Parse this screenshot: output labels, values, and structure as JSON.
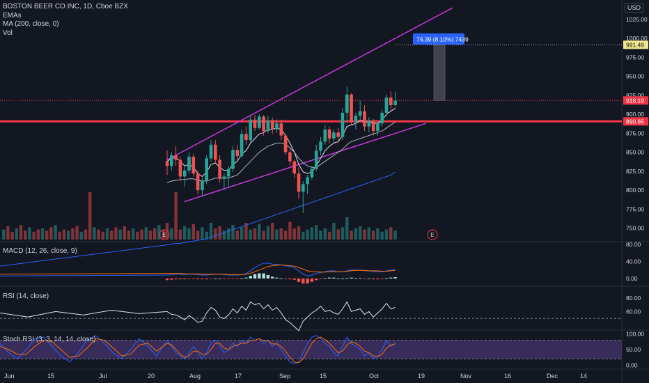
{
  "header": {
    "title": "BOSTON BEER CO INC, 1D, Cboe BZX",
    "currency": "USD",
    "indicators": [
      "EMAs",
      "MA (200, close, 0)",
      "Vol"
    ]
  },
  "panes": {
    "macd_label": "MACD (12, 26, close, 9)",
    "rsi_label": "RSI (14, close)",
    "stoch_label": "Stoch RSI (3, 3, 14, 14, close)"
  },
  "measure_label": "74.39 (8.10%) 7439",
  "earnings_marker": "E",
  "chart_data": {
    "type": "candlestick",
    "price_axis": {
      "ticks": [
        "1025.00",
        "1000.00",
        "975.00",
        "950.00",
        "925.00",
        "900.00",
        "875.00",
        "850.00",
        "825.00",
        "800.00",
        "775.00",
        "750.00"
      ],
      "ylim": [
        735,
        1045
      ]
    },
    "price_tags": [
      {
        "value": "991.49",
        "color": "#f0e68c",
        "text_color": "#131722"
      },
      {
        "value": "918.19",
        "color": "#f23645",
        "text_color": "#ffffff"
      },
      {
        "value": "890.65",
        "color": "#f23645",
        "text_color": "#ffffff"
      }
    ],
    "x_axis_ticks": [
      "Jun",
      "15",
      "Jul",
      "20",
      "Aug",
      "17",
      "Sep",
      "15",
      "Oct",
      "19",
      "Nov",
      "16",
      "Dec",
      "14"
    ],
    "horizontal_support": 890.65,
    "candles": [
      [
        838,
        852,
        820,
        832
      ],
      [
        832,
        850,
        826,
        846
      ],
      [
        846,
        858,
        832,
        840
      ],
      [
        840,
        844,
        812,
        818
      ],
      [
        818,
        832,
        804,
        826
      ],
      [
        826,
        850,
        822,
        844
      ],
      [
        844,
        848,
        818,
        822
      ],
      [
        822,
        826,
        795,
        800
      ],
      [
        800,
        816,
        792,
        812
      ],
      [
        812,
        846,
        808,
        842
      ],
      [
        842,
        866,
        838,
        860
      ],
      [
        860,
        866,
        836,
        840
      ],
      [
        840,
        846,
        810,
        815
      ],
      [
        815,
        822,
        800,
        818
      ],
      [
        818,
        832,
        805,
        828
      ],
      [
        828,
        858,
        824,
        853
      ],
      [
        853,
        860,
        840,
        845
      ],
      [
        845,
        880,
        842,
        874
      ],
      [
        874,
        884,
        860,
        866
      ],
      [
        866,
        898,
        862,
        893
      ],
      [
        893,
        899,
        878,
        882
      ],
      [
        882,
        900,
        880,
        897
      ],
      [
        897,
        899,
        872,
        878
      ],
      [
        878,
        898,
        875,
        892
      ],
      [
        892,
        896,
        874,
        880
      ],
      [
        880,
        893,
        876,
        888
      ],
      [
        888,
        893,
        866,
        872
      ],
      [
        872,
        874,
        846,
        850
      ],
      [
        850,
        855,
        832,
        838
      ],
      [
        838,
        840,
        816,
        822
      ],
      [
        822,
        830,
        788,
        798
      ],
      [
        798,
        812,
        770,
        808
      ],
      [
        808,
        820,
        795,
        817
      ],
      [
        817,
        832,
        814,
        828
      ],
      [
        828,
        860,
        825,
        852
      ],
      [
        852,
        870,
        846,
        864
      ],
      [
        864,
        886,
        860,
        880
      ],
      [
        880,
        884,
        862,
        868
      ],
      [
        868,
        880,
        862,
        876
      ],
      [
        876,
        882,
        862,
        870
      ],
      [
        870,
        908,
        866,
        902
      ],
      [
        902,
        936,
        890,
        926
      ],
      [
        926,
        928,
        886,
        890
      ],
      [
        890,
        902,
        880,
        898
      ],
      [
        898,
        918,
        892,
        904
      ],
      [
        904,
        912,
        878,
        884
      ],
      [
        884,
        896,
        876,
        892
      ],
      [
        892,
        894,
        872,
        878
      ],
      [
        878,
        892,
        872,
        888
      ],
      [
        888,
        906,
        884,
        902
      ],
      [
        902,
        926,
        898,
        922
      ],
      [
        922,
        930,
        906,
        912
      ],
      [
        912,
        930,
        910,
        918
      ]
    ],
    "moving_averages": [
      {
        "name": "EMA fast",
        "color": "#e0e3eb",
        "values": [
          838,
          842,
          843,
          838,
          832,
          834,
          830,
          822,
          818,
          824,
          834,
          836,
          830,
          826,
          826,
          834,
          838,
          848,
          852,
          862,
          868,
          874,
          876,
          880,
          880,
          882,
          880,
          872,
          862,
          850,
          834,
          824,
          822,
          824,
          832,
          842,
          852,
          858,
          862,
          864,
          872,
          884,
          886,
          888,
          892,
          890,
          890,
          888,
          888,
          892,
          900,
          904,
          908
        ]
      },
      {
        "name": "EMA slow",
        "color": "#b2b5be",
        "values": [
          810,
          812,
          813,
          814,
          814,
          815,
          815,
          813,
          812,
          812,
          814,
          816,
          816,
          816,
          816,
          818,
          820,
          826,
          832,
          838,
          844,
          850,
          854,
          858,
          860,
          862,
          862,
          860,
          856,
          850,
          842,
          836,
          832,
          830,
          830,
          834,
          838,
          842,
          846,
          850,
          854,
          860,
          864,
          866,
          868,
          870,
          872,
          874,
          876,
          878,
          882,
          886,
          890
        ]
      },
      {
        "name": "MA (200, close, 0)",
        "color": "#2962ff",
        "values": [
          728,
          729,
          730,
          730,
          731,
          732,
          733,
          734,
          735,
          736,
          738,
          740,
          742,
          744,
          746,
          748,
          750,
          752,
          754,
          756,
          758,
          760,
          762,
          764,
          766,
          768,
          770,
          772,
          774,
          776,
          778,
          780,
          782,
          784,
          786,
          788,
          790,
          792,
          794,
          796,
          798,
          800,
          802,
          804,
          806,
          808,
          810,
          812,
          814,
          816,
          818,
          820,
          824
        ]
      }
    ],
    "channel_lines": [
      {
        "color": "#c23bd8",
        "from": [
          0,
          840
        ],
        "to": [
          65,
          1040
        ]
      },
      {
        "color": "#c23bd8",
        "from": [
          4,
          785
        ],
        "to": [
          59,
          888
        ]
      }
    ],
    "volume": [
      30,
      20,
      85,
      18,
      24,
      20,
      28,
      16,
      22,
      14,
      30,
      20,
      24,
      16,
      20,
      26,
      16,
      22,
      30,
      18,
      20,
      28,
      16,
      24,
      30,
      18,
      20,
      16,
      32,
      20,
      24,
      14,
      18,
      22,
      26,
      16,
      20,
      14,
      30,
      18,
      22,
      40,
      16,
      20,
      24,
      18,
      22,
      16,
      20,
      14,
      18,
      22,
      16
    ],
    "macd": {
      "macd_line": [
        8,
        9,
        10,
        10,
        9,
        10,
        10,
        9,
        8,
        8,
        9,
        10,
        10,
        9,
        8,
        8,
        8,
        9,
        12,
        18,
        26,
        32,
        36,
        36,
        34,
        33,
        32,
        30,
        28,
        26,
        18,
        10,
        6,
        8,
        12,
        14,
        16,
        18,
        18,
        16,
        16,
        18,
        20,
        20,
        20,
        18,
        18,
        16,
        16,
        16,
        18,
        20,
        22
      ],
      "signal_line": [
        12,
        12,
        12,
        12,
        11,
        11,
        11,
        11,
        10,
        10,
        10,
        10,
        10,
        10,
        9,
        9,
        9,
        9,
        10,
        12,
        16,
        20,
        24,
        28,
        30,
        31,
        32,
        31,
        30,
        29,
        26,
        22,
        18,
        16,
        16,
        15,
        15,
        16,
        16,
        16,
        16,
        17,
        18,
        19,
        19,
        19,
        18,
        18,
        18,
        17,
        17,
        18,
        19
      ],
      "ylim": [
        -15,
        82
      ],
      "ticks": [
        "80.00",
        "40.00",
        "0.00"
      ]
    },
    "rsi": {
      "values": [
        60,
        56,
        55,
        52,
        48,
        54,
        50,
        44,
        46,
        58,
        66,
        62,
        52,
        50,
        55,
        64,
        58,
        68,
        62,
        74,
        70,
        72,
        64,
        70,
        62,
        66,
        58,
        48,
        44,
        38,
        32,
        46,
        52,
        58,
        62,
        68,
        60,
        62,
        58,
        56,
        64,
        74,
        60,
        62,
        64,
        56,
        60,
        52,
        58,
        64,
        72,
        64,
        66
      ],
      "ylim": [
        35,
        95
      ],
      "ticks": [
        "80.00",
        "60.00"
      ],
      "dashed_level": 50
    },
    "stoch_rsi": {
      "k": [
        80,
        60,
        40,
        30,
        20,
        40,
        60,
        40,
        20,
        40,
        70,
        80,
        60,
        40,
        50,
        70,
        60,
        80,
        70,
        90,
        80,
        85,
        70,
        80,
        60,
        70,
        50,
        30,
        10,
        5,
        10,
        40,
        70,
        90,
        95,
        85,
        70,
        60,
        40,
        30,
        60,
        90,
        70,
        60,
        50,
        30,
        40,
        20,
        30,
        50,
        80,
        60,
        70
      ],
      "d": [
        70,
        65,
        50,
        35,
        25,
        30,
        45,
        45,
        35,
        35,
        50,
        70,
        70,
        55,
        50,
        60,
        65,
        70,
        70,
        80,
        80,
        85,
        78,
        78,
        68,
        68,
        60,
        45,
        25,
        10,
        8,
        20,
        45,
        70,
        85,
        90,
        82,
        70,
        55,
        40,
        45,
        65,
        75,
        70,
        60,
        45,
        40,
        30,
        28,
        35,
        55,
        65,
        68
      ],
      "ylim": [
        -8,
        108
      ],
      "ticks": [
        "100.00",
        "50.00",
        "0.00"
      ],
      "band": [
        20,
        80
      ]
    }
  }
}
